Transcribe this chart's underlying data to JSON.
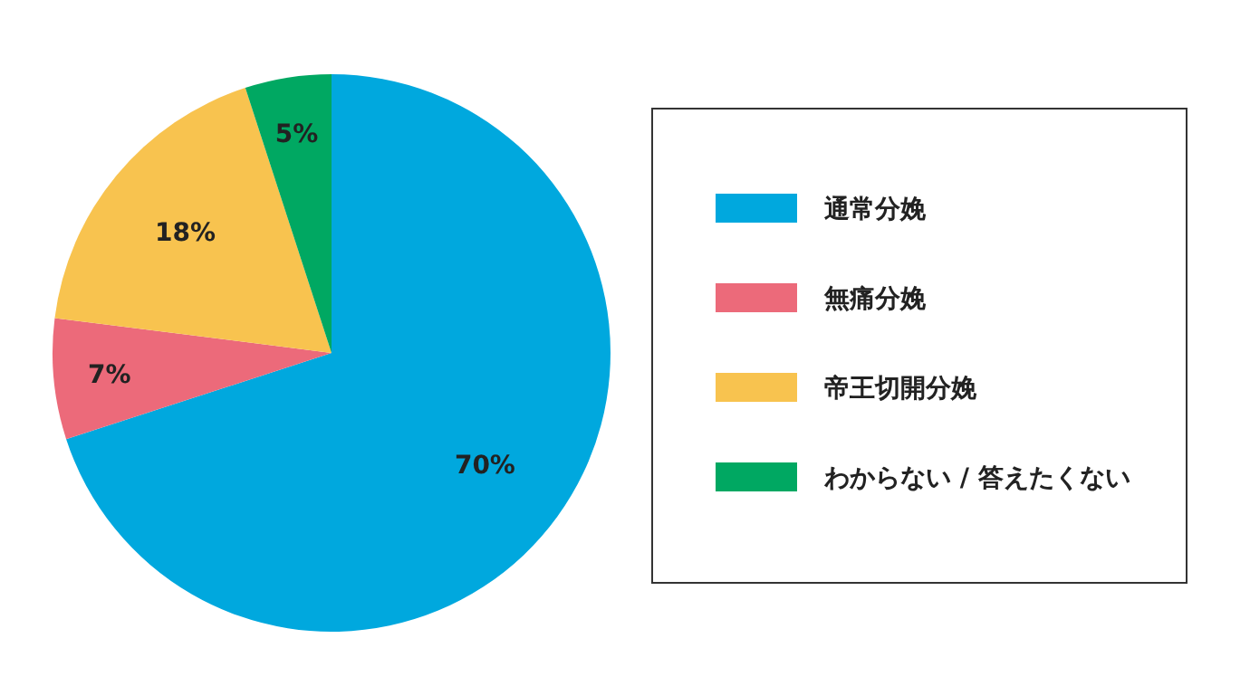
{
  "chart_data": {
    "type": "pie",
    "categories": [
      "通常分娩",
      "無痛分娩",
      "帝王切開分娩",
      "わからない / 答えたくない"
    ],
    "values": [
      70,
      7,
      18,
      5
    ],
    "colors": [
      "#00a8de",
      "#ec6a7a",
      "#f8c34f",
      "#00a862"
    ],
    "value_labels": [
      "70%",
      "7%",
      "18%",
      "5%"
    ],
    "legend": "right"
  }
}
